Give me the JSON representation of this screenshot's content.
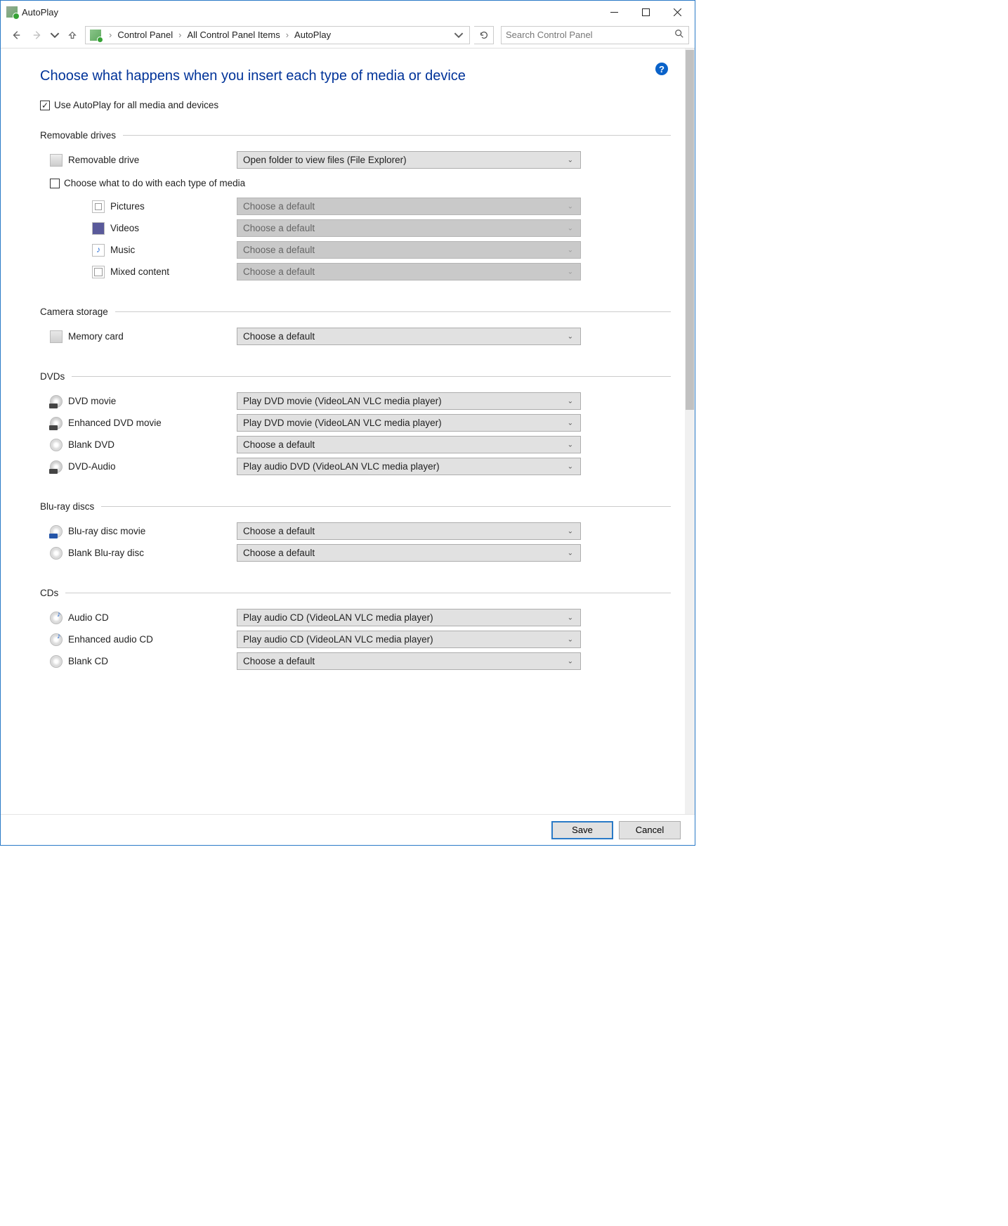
{
  "window": {
    "title": "AutoPlay"
  },
  "breadcrumb": {
    "items": [
      "Control Panel",
      "All Control Panel Items",
      "AutoPlay"
    ]
  },
  "search": {
    "placeholder": "Search Control Panel"
  },
  "page": {
    "heading": "Choose what happens when you insert each type of media or device",
    "master_checkbox_label": "Use AutoPlay for all media and devices",
    "master_checkbox_checked": true
  },
  "sections": {
    "removable": {
      "title": "Removable drives",
      "main_row": {
        "label": "Removable drive",
        "value": "Open folder to view files (File Explorer)",
        "disabled": false
      },
      "sub_checkbox_label": "Choose what to do with each type of media",
      "sub_checkbox_checked": false,
      "media_rows": [
        {
          "label": "Pictures",
          "value": "Choose a default",
          "disabled": true,
          "icon": "pic"
        },
        {
          "label": "Videos",
          "value": "Choose a default",
          "disabled": true,
          "icon": "vid"
        },
        {
          "label": "Music",
          "value": "Choose a default",
          "disabled": true,
          "icon": "mus"
        },
        {
          "label": "Mixed content",
          "value": "Choose a default",
          "disabled": true,
          "icon": "mix"
        }
      ]
    },
    "camera": {
      "title": "Camera storage",
      "rows": [
        {
          "label": "Memory card",
          "value": "Choose a default",
          "disabled": false,
          "icon": "cam"
        }
      ]
    },
    "dvds": {
      "title": "DVDs",
      "rows": [
        {
          "label": "DVD movie",
          "value": "Play DVD movie (VideoLAN VLC media player)",
          "disabled": false,
          "icon": "disc dvd"
        },
        {
          "label": "Enhanced DVD movie",
          "value": "Play DVD movie (VideoLAN VLC media player)",
          "disabled": false,
          "icon": "disc dvd"
        },
        {
          "label": "Blank DVD",
          "value": "Choose a default",
          "disabled": false,
          "icon": "disc"
        },
        {
          "label": "DVD-Audio",
          "value": "Play audio DVD (VideoLAN VLC media player)",
          "disabled": false,
          "icon": "disc dvd"
        }
      ]
    },
    "bluray": {
      "title": "Blu-ray discs",
      "rows": [
        {
          "label": "Blu-ray disc movie",
          "value": "Choose a default",
          "disabled": false,
          "icon": "disc bd"
        },
        {
          "label": "Blank Blu-ray disc",
          "value": "Choose a default",
          "disabled": false,
          "icon": "disc"
        }
      ]
    },
    "cds": {
      "title": "CDs",
      "rows": [
        {
          "label": "Audio CD",
          "value": "Play audio CD (VideoLAN VLC media player)",
          "disabled": false,
          "icon": "disc cd-a"
        },
        {
          "label": "Enhanced audio CD",
          "value": "Play audio CD (VideoLAN VLC media player)",
          "disabled": false,
          "icon": "disc cd-a"
        },
        {
          "label": "Blank CD",
          "value": "Choose a default",
          "disabled": false,
          "icon": "disc"
        }
      ]
    }
  },
  "footer": {
    "save": "Save",
    "cancel": "Cancel"
  },
  "colors": {
    "window_border": "#2a7ac7",
    "heading": "#003399",
    "select_bg": "#e1e1e1",
    "select_disabled_bg": "#c9c9c9",
    "divider": "#cccccc"
  }
}
